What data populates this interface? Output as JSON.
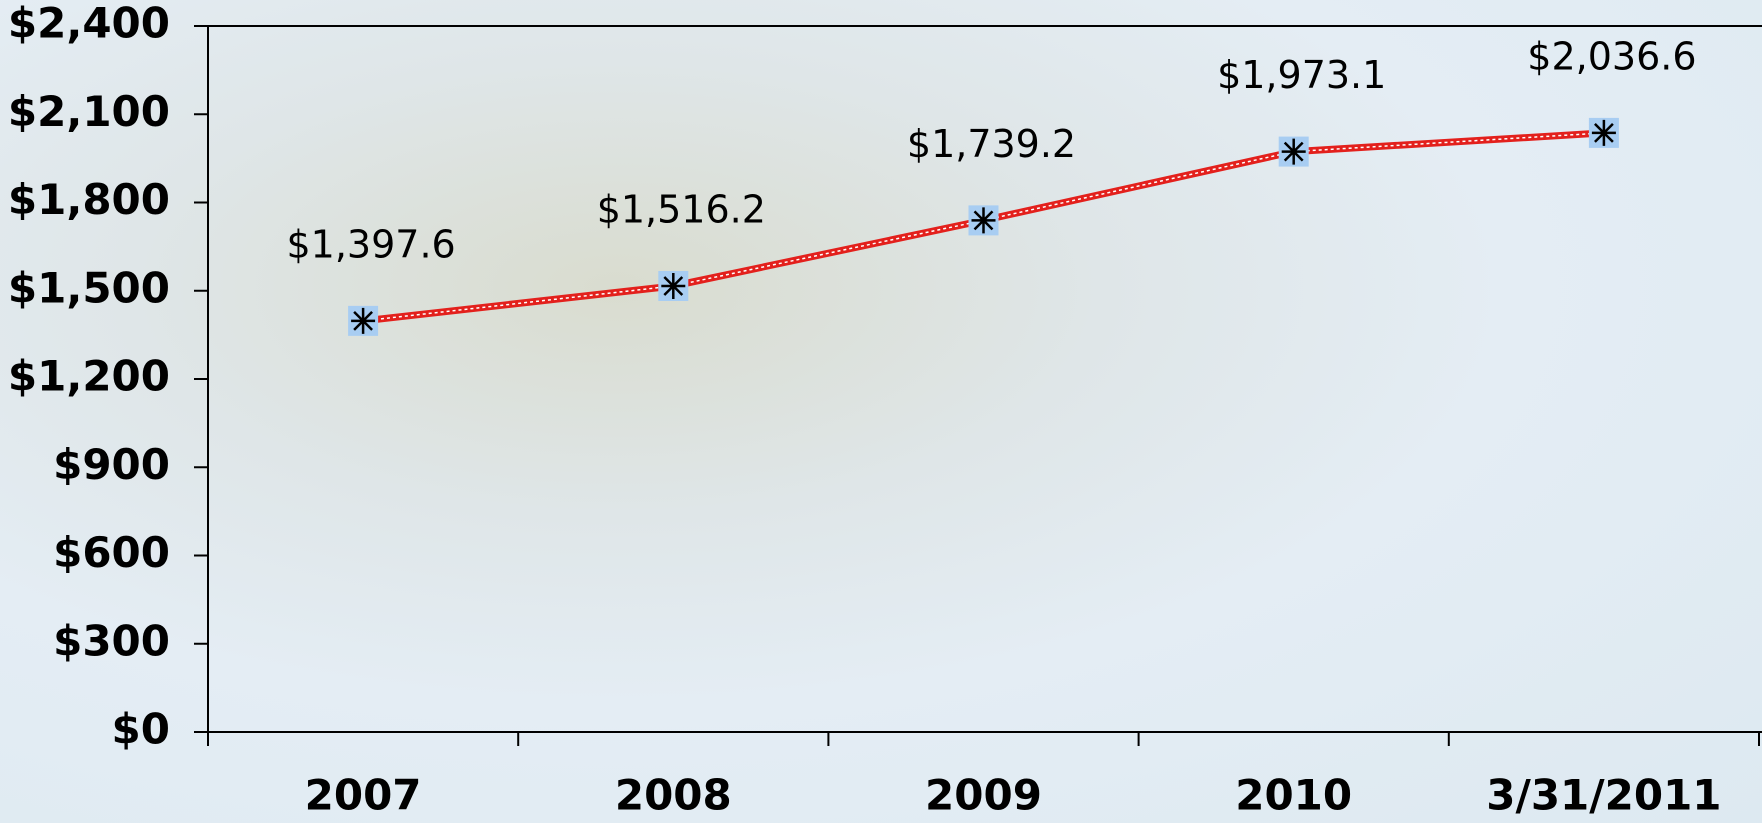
{
  "chart_data": {
    "type": "line",
    "categories": [
      "2007",
      "2008",
      "2009",
      "2010",
      "3/31/2011"
    ],
    "values": [
      1397.6,
      1516.2,
      1739.2,
      1973.1,
      2036.6
    ],
    "value_labels": [
      "$1,397.6",
      "$1,516.2",
      "$1,739.2",
      "$1,973.1",
      "$2,036.6"
    ],
    "color": "#e3201c",
    "marker_color": "#a8cdf2",
    "ylim": [
      0,
      2400
    ],
    "yticks": [
      {
        "value": 0,
        "label": "$0"
      },
      {
        "value": 300,
        "label": "$300"
      },
      {
        "value": 600,
        "label": "$600"
      },
      {
        "value": 900,
        "label": "$900"
      },
      {
        "value": 1200,
        "label": "$1,200"
      },
      {
        "value": 1500,
        "label": "$1,500"
      },
      {
        "value": 1800,
        "label": "$1,800"
      },
      {
        "value": 2100,
        "label": "$2,100"
      },
      {
        "value": 2400,
        "label": "$2,400"
      }
    ],
    "grid": false
  }
}
